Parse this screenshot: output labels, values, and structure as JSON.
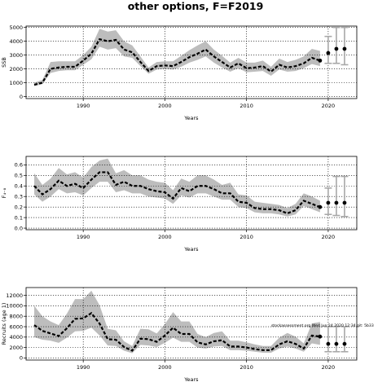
{
  "title": "other options, F=F2019",
  "watermark": "stockassessment.org  Wed Jun 24 2020 12:34  git: 5b33",
  "colors": {
    "band": "#bdbdbd",
    "line": "#000000",
    "projection_bar": "#a8a8a8",
    "grid": "#000000"
  },
  "chart_data": [
    {
      "type": "line",
      "xlabel": "Years",
      "ylabel": "SSB",
      "xlim": [
        1983,
        2023.5
      ],
      "ylim": [
        -150,
        5100
      ],
      "xticks": [
        1990,
        2000,
        2010,
        2020
      ],
      "yticks": [
        0,
        1000,
        2000,
        3000,
        4000,
        5000
      ],
      "ytick_labels": [
        "0",
        "1000",
        "2000",
        "3000",
        "4000",
        "5000"
      ],
      "grid": true,
      "x": [
        1984,
        1985,
        1986,
        1987,
        1988,
        1989,
        1990,
        1991,
        1992,
        1993,
        1994,
        1995,
        1996,
        1997,
        1998,
        1999,
        2000,
        2001,
        2002,
        2003,
        2004,
        2005,
        2006,
        2007,
        2008,
        2009,
        2010,
        2011,
        2012,
        2013,
        2014,
        2015,
        2016,
        2017,
        2018,
        2019
      ],
      "estimate": [
        850,
        1000,
        2000,
        2100,
        2150,
        2150,
        2600,
        3100,
        4150,
        4000,
        4100,
        3400,
        3200,
        2500,
        1850,
        2200,
        2250,
        2200,
        2500,
        2850,
        3100,
        3400,
        2900,
        2500,
        2100,
        2400,
        2050,
        2100,
        2200,
        1800,
        2300,
        2100,
        2200,
        2400,
        2800,
        2600
      ],
      "lower": [
        750,
        900,
        1700,
        1850,
        1900,
        1900,
        2300,
        2700,
        3600,
        3400,
        3500,
        2900,
        2800,
        2200,
        1650,
        1950,
        2000,
        1950,
        2150,
        2450,
        2650,
        2900,
        2450,
        2100,
        1800,
        2050,
        1750,
        1800,
        1850,
        1500,
        1950,
        1800,
        1850,
        2050,
        2350,
        2200
      ],
      "upper": [
        1000,
        1200,
        2500,
        2550,
        2550,
        2550,
        3000,
        3600,
        4900,
        4700,
        4800,
        4000,
        3700,
        2900,
        2100,
        2500,
        2550,
        2550,
        2950,
        3350,
        3700,
        4000,
        3400,
        2950,
        2450,
        2800,
        2450,
        2450,
        2600,
        2150,
        2750,
        2500,
        2650,
        2900,
        3450,
        3300
      ],
      "projection": {
        "years": [
          2020,
          2021,
          2022
        ],
        "median": [
          3150,
          3450,
          3450
        ],
        "low": [
          2400,
          2400,
          2300
        ],
        "high": [
          4350,
          5000,
          5000
        ]
      }
    },
    {
      "type": "line",
      "xlabel": "Years",
      "ylabel": "F₄₋₈",
      "xlim": [
        1983,
        2023.5
      ],
      "ylim": [
        -0.015,
        0.68
      ],
      "xticks": [
        1990,
        2000,
        2010,
        2020
      ],
      "yticks": [
        0,
        0.1,
        0.2,
        0.3,
        0.4,
        0.5,
        0.6
      ],
      "ytick_labels": [
        "0.0",
        "0.1",
        "0.2",
        "0.3",
        "0.4",
        "0.5",
        "0.6"
      ],
      "grid": true,
      "x": [
        1984,
        1985,
        1986,
        1987,
        1988,
        1989,
        1990,
        1991,
        1992,
        1993,
        1994,
        1995,
        1996,
        1997,
        1998,
        1999,
        2000,
        2001,
        2002,
        2003,
        2004,
        2005,
        2006,
        2007,
        2008,
        2009,
        2010,
        2011,
        2012,
        2013,
        2014,
        2015,
        2016,
        2017,
        2018,
        2019
      ],
      "estimate": [
        0.4,
        0.32,
        0.37,
        0.45,
        0.4,
        0.42,
        0.38,
        0.46,
        0.53,
        0.53,
        0.41,
        0.44,
        0.4,
        0.4,
        0.37,
        0.35,
        0.34,
        0.28,
        0.38,
        0.35,
        0.4,
        0.4,
        0.37,
        0.33,
        0.33,
        0.25,
        0.24,
        0.19,
        0.18,
        0.18,
        0.17,
        0.14,
        0.17,
        0.26,
        0.23,
        0.2
      ],
      "lower": [
        0.32,
        0.25,
        0.3,
        0.37,
        0.33,
        0.34,
        0.31,
        0.38,
        0.44,
        0.44,
        0.34,
        0.36,
        0.33,
        0.33,
        0.3,
        0.29,
        0.28,
        0.23,
        0.31,
        0.29,
        0.33,
        0.33,
        0.3,
        0.27,
        0.27,
        0.2,
        0.19,
        0.15,
        0.14,
        0.14,
        0.13,
        0.11,
        0.13,
        0.21,
        0.18,
        0.15
      ],
      "upper": [
        0.52,
        0.41,
        0.47,
        0.57,
        0.51,
        0.53,
        0.48,
        0.58,
        0.64,
        0.66,
        0.52,
        0.55,
        0.5,
        0.5,
        0.46,
        0.44,
        0.43,
        0.36,
        0.47,
        0.44,
        0.5,
        0.5,
        0.46,
        0.41,
        0.43,
        0.32,
        0.31,
        0.25,
        0.24,
        0.23,
        0.22,
        0.19,
        0.23,
        0.33,
        0.3,
        0.26
      ],
      "projection": {
        "years": [
          2020,
          2021,
          2022
        ],
        "median": [
          0.24,
          0.24,
          0.24
        ],
        "low": [
          0.13,
          0.12,
          0.11
        ],
        "high": [
          0.38,
          0.49,
          0.49
        ]
      }
    },
    {
      "type": "line",
      "xlabel": "Years",
      "ylabel": "Recruits (age 1)",
      "xlim": [
        1983,
        2023.5
      ],
      "ylim": [
        -400,
        13500
      ],
      "xticks": [
        1990,
        2000,
        2010,
        2020
      ],
      "yticks": [
        0,
        2000,
        4000,
        6000,
        8000,
        10000,
        12000
      ],
      "ytick_labels": [
        "0",
        "2000",
        "4000",
        "6000",
        "8000",
        "10000",
        "12000"
      ],
      "grid": true,
      "x": [
        1984,
        1985,
        1986,
        1987,
        1988,
        1989,
        1990,
        1991,
        1992,
        1993,
        1994,
        1995,
        1996,
        1997,
        1998,
        1999,
        2000,
        2001,
        2002,
        2003,
        2004,
        2005,
        2006,
        2007,
        2008,
        2009,
        2010,
        2011,
        2012,
        2013,
        2014,
        2015,
        2016,
        2017,
        2018,
        2019
      ],
      "estimate": [
        6300,
        5200,
        4700,
        4200,
        5700,
        7500,
        7600,
        8600,
        6600,
        3600,
        3500,
        2100,
        1400,
        3700,
        3600,
        3100,
        4300,
        5800,
        4600,
        4600,
        3000,
        2600,
        3200,
        3400,
        2200,
        2200,
        2000,
        1700,
        1500,
        1500,
        2600,
        3200,
        2700,
        1800,
        4300,
        4100
      ],
      "lower": [
        4000,
        3500,
        3300,
        2900,
        3900,
        5100,
        5200,
        5800,
        4300,
        2400,
        2300,
        1400,
        900,
        2500,
        2400,
        2100,
        2900,
        3900,
        3100,
        3100,
        2000,
        1800,
        2200,
        2300,
        1500,
        1500,
        1400,
        1200,
        1000,
        1000,
        1800,
        2200,
        1800,
        1200,
        2800,
        2500
      ],
      "upper": [
        10000,
        8000,
        7000,
        6300,
        8500,
        11300,
        11300,
        12900,
        10100,
        5600,
        5300,
        3200,
        2300,
        5600,
        5500,
        4700,
        6500,
        8800,
        7000,
        7000,
        4600,
        4000,
        4800,
        5100,
        3300,
        3300,
        3000,
        2600,
        2300,
        2300,
        3900,
        4800,
        4100,
        2800,
        6600,
        6900
      ],
      "projection": {
        "years": [
          2020,
          2021,
          2022
        ],
        "median": [
          2700,
          2700,
          2700
        ],
        "low": [
          1200,
          1200,
          1200
        ],
        "high": [
          6000,
          6000,
          6000
        ]
      }
    }
  ]
}
